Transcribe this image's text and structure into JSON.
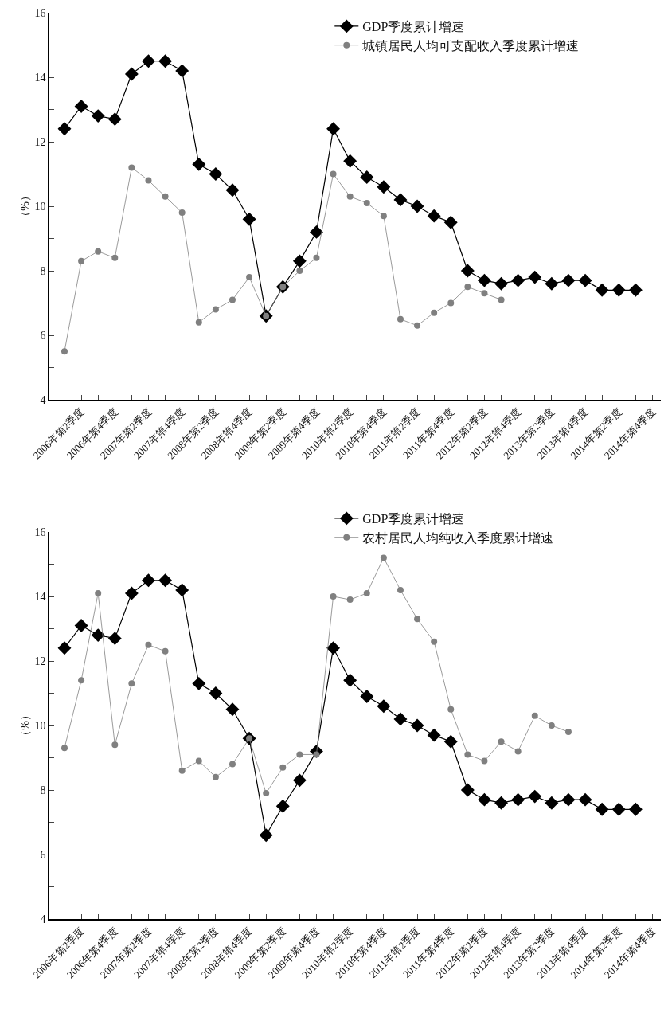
{
  "chart_data": [
    {
      "type": "line",
      "ylabel": "（%）",
      "legend": "top right",
      "categories": [
        null,
        "2006年第2季度",
        null,
        "2006年第4季度",
        null,
        "2007年第2季度",
        null,
        "2007年第4季度",
        null,
        "2008年第2季度",
        null,
        "2008年第4季度",
        null,
        "2009年第2季度",
        null,
        "2009年第4季度",
        null,
        "2010年第2季度",
        null,
        "2010年第4季度",
        null,
        "2011年第2季度",
        null,
        "2011年第4季度",
        null,
        "2012年第2季度",
        null,
        "2012年第4季度",
        null,
        "2013年第2季度",
        null,
        "2013年第4季度",
        null,
        "2014年第2季度",
        null,
        "2014年第4季度"
      ],
      "ylim": [
        4,
        16
      ],
      "yticks": [
        4,
        {
          "value": 5,
          "label": null
        },
        6,
        {
          "value": 7,
          "label": null
        },
        8,
        {
          "value": 9,
          "label": null
        },
        10,
        {
          "value": 11,
          "label": null
        },
        12,
        {
          "value": 13,
          "label": null
        },
        14,
        {
          "value": 15,
          "label": null
        },
        16
      ],
      "series": [
        {
          "name": "GDP季度累计增速",
          "color": "#000000",
          "marker": "diamond",
          "values": [
            12.4,
            13.1,
            12.8,
            12.7,
            14.1,
            14.5,
            14.5,
            14.2,
            11.3,
            11.0,
            10.5,
            9.6,
            6.6,
            7.5,
            8.3,
            9.2,
            12.4,
            11.4,
            10.9,
            10.6,
            10.2,
            10.0,
            9.7,
            9.5,
            8.0,
            7.7,
            7.6,
            7.7,
            7.8,
            7.6,
            7.7,
            7.7,
            7.4,
            7.4,
            7.4,
            null
          ]
        },
        {
          "name": "城镇居民人均可支配收入季度累计增速",
          "color": "#808080",
          "marker": "circle",
          "values": [
            5.5,
            8.3,
            8.6,
            8.4,
            11.2,
            10.8,
            10.3,
            9.8,
            6.4,
            6.8,
            7.1,
            7.8,
            6.6,
            7.5,
            8.0,
            8.4,
            11.0,
            10.3,
            10.1,
            9.7,
            6.5,
            6.3,
            6.7,
            7.0,
            7.5,
            7.3,
            7.1,
            null,
            null,
            null,
            null,
            null,
            null,
            null,
            null,
            null
          ]
        }
      ]
    },
    {
      "type": "line",
      "ylabel": "（%）",
      "legend": "top right",
      "categories": [
        null,
        "2006年第2季度",
        null,
        "2006年第4季度",
        null,
        "2007年第2季度",
        null,
        "2007年第4季度",
        null,
        "2008年第2季度",
        null,
        "2008年第4季度",
        null,
        "2009年第2季度",
        null,
        "2009年第4季度",
        null,
        "2010年第2季度",
        null,
        "2010年第4季度",
        null,
        "2011年第2季度",
        null,
        "2011年第4季度",
        null,
        "2012年第2季度",
        null,
        "2012年第4季度",
        null,
        "2013年第2季度",
        null,
        "2013年第4季度",
        null,
        "2014年第2季度",
        null,
        "2014年第4季度"
      ],
      "ylim": [
        4,
        16
      ],
      "yticks": [
        4,
        {
          "value": 5,
          "label": null
        },
        6,
        {
          "value": 7,
          "label": null
        },
        8,
        {
          "value": 9,
          "label": null
        },
        10,
        {
          "value": 11,
          "label": null
        },
        12,
        {
          "value": 13,
          "label": null
        },
        14,
        {
          "value": 15,
          "label": null
        },
        16
      ],
      "series": [
        {
          "name": "GDP季度累计增速",
          "color": "#000000",
          "marker": "diamond",
          "values": [
            12.4,
            13.1,
            12.8,
            12.7,
            14.1,
            14.5,
            14.5,
            14.2,
            11.3,
            11.0,
            10.5,
            9.6,
            6.6,
            7.5,
            8.3,
            9.2,
            12.4,
            11.4,
            10.9,
            10.6,
            10.2,
            10.0,
            9.7,
            9.5,
            8.0,
            7.7,
            7.6,
            7.7,
            7.8,
            7.6,
            7.7,
            7.7,
            7.4,
            7.4,
            7.4,
            null
          ]
        },
        {
          "name": "农村居民人均纯收入季度累计增速",
          "color": "#808080",
          "marker": "circle",
          "values": [
            9.3,
            11.4,
            14.1,
            9.4,
            11.3,
            12.5,
            12.3,
            8.6,
            8.9,
            8.4,
            8.8,
            9.6,
            7.9,
            8.7,
            9.1,
            9.1,
            14.0,
            13.9,
            14.1,
            15.2,
            14.2,
            13.3,
            12.6,
            10.5,
            9.1,
            8.9,
            9.5,
            9.2,
            10.3,
            10.0,
            9.8,
            null,
            null,
            null,
            null,
            null
          ]
        }
      ]
    }
  ]
}
